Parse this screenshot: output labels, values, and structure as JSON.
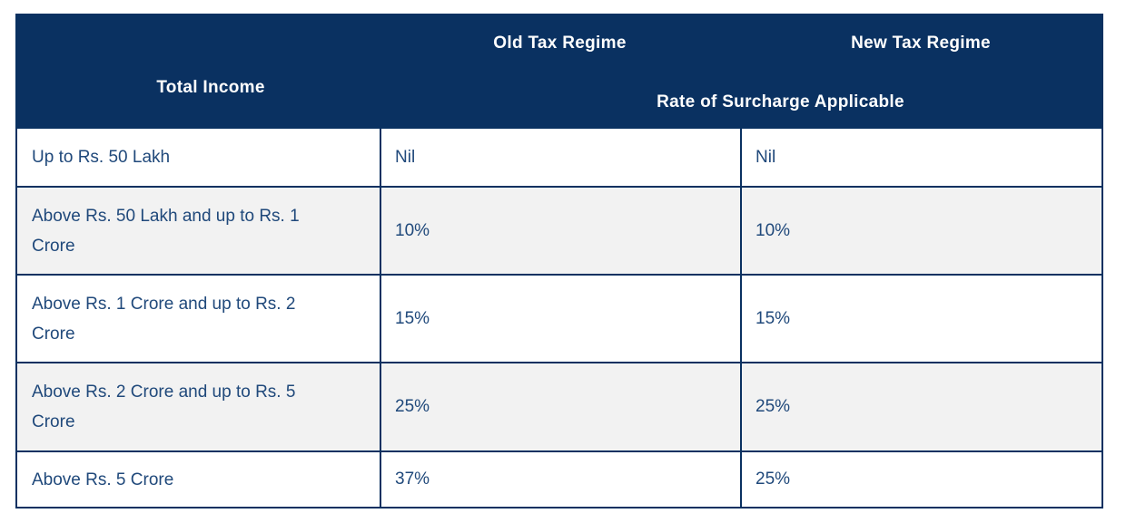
{
  "table": {
    "header": {
      "total_income": "Total Income",
      "old_regime": "Old Tax Regime",
      "new_regime": "New Tax Regime",
      "sub_header": "Rate of Surcharge Applicable"
    },
    "rows": [
      {
        "income": "Up to Rs. 50 Lakh",
        "old": "Nil",
        "new": "Nil"
      },
      {
        "income": "Above Rs. 50 Lakh and up to Rs. 1 Crore",
        "old": "10%",
        "new": "10%"
      },
      {
        "income": "Above Rs. 1 Crore and up to Rs. 2 Crore",
        "old": "15%",
        "new": "15%"
      },
      {
        "income": "Above Rs. 2 Crore and up to Rs. 5 Crore",
        "old": "25%",
        "new": "25%"
      },
      {
        "income": "Above Rs. 5 Crore",
        "old": "37%",
        "new": "25%"
      }
    ],
    "colors": {
      "header_bg": "#0a3161",
      "border": "#0a3161",
      "header_text": "#ffffff",
      "body_text": "#20497b",
      "row_bg": "#ffffff",
      "row_alt_bg": "#f2f2f2",
      "page_bg": "#ffffff"
    }
  }
}
